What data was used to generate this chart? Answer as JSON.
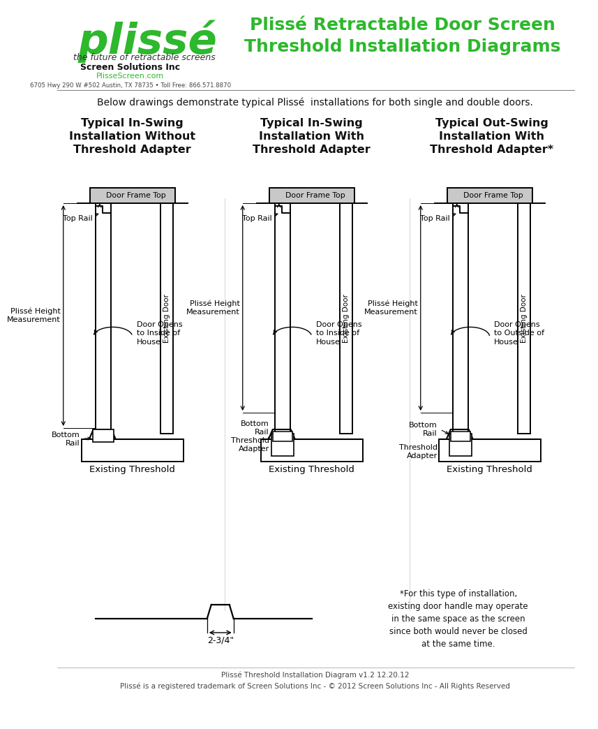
{
  "title": "Plissé Retractable Door Screen\nThreshold Installation Diagrams",
  "subtitle": "Below drawings demonstrate typical Plissé  installations for both single and double doors.",
  "diagram_titles": [
    "Typical In-Swing\nInstallation Without\nThreshold Adapter",
    "Typical In-Swing\nInstallation With\nThreshold Adapter",
    "Typical Out-Swing\nInstallation With\nThreshold Adapter*"
  ],
  "footnote_star": "*For this type of installation,\nexisting door handle may operate\nin the same space as the screen\nsince both would never be closed\nat the same time.",
  "footer_line1": "Plissé Threshold Installation Diagram v1.2 12.20.12",
  "footer_line2": "Plissé is a registered trademark of Screen Solutions Inc - © 2012 Screen Solutions Inc - All Rights Reserved",
  "company_name": "Screen Solutions Inc",
  "company_url": "PlisseScreen.com",
  "company_address": "6705 Hwy 290 W #502 Austin, TX 78735 • Toll Free: 866.571.8870",
  "tagline": "the future of retractable screens",
  "title_color": "#2db82d",
  "bg_color": "#ffffff",
  "diagram_color": "#000000",
  "measure_label": "2-3/4\""
}
